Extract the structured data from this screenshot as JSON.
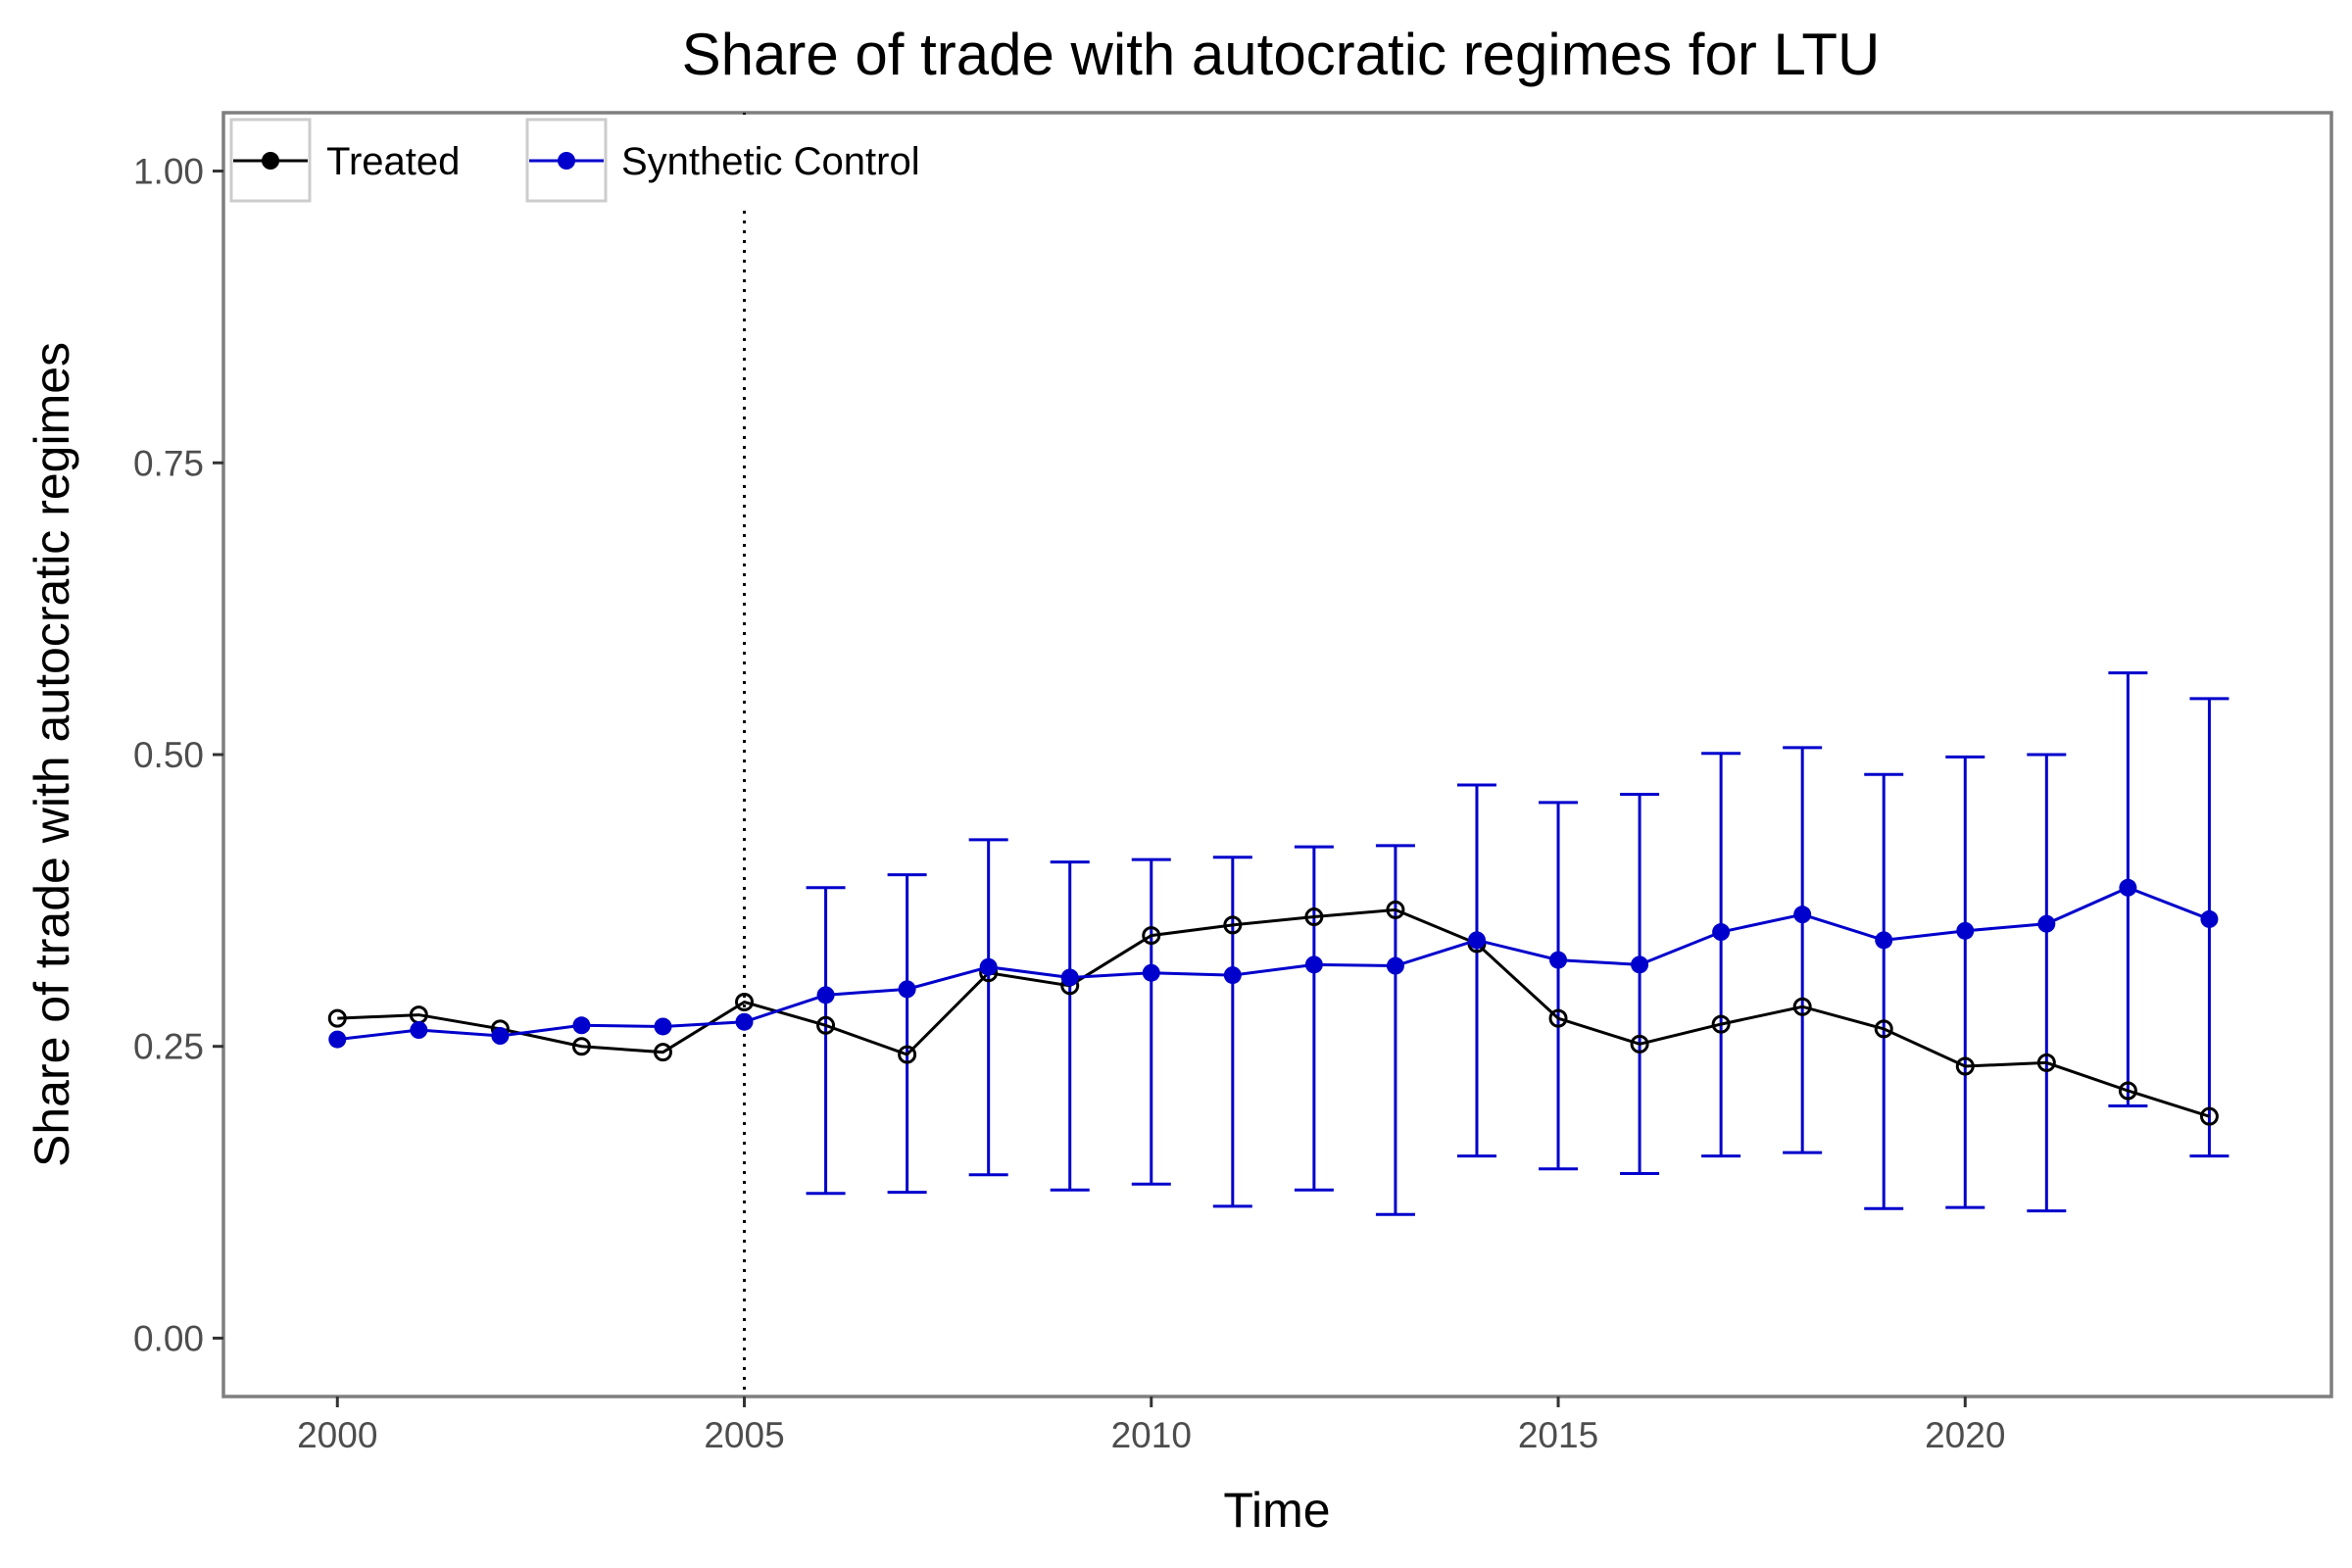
{
  "chart_data": {
    "type": "line",
    "title": "Share of trade with autocratic regimes for LTU",
    "xlabel": "Time",
    "ylabel": "Share of trade with autocratic regimes",
    "xlim": [
      1998.6,
      2024.5
    ],
    "ylim": [
      -0.05,
      1.05
    ],
    "x_ticks": [
      2000,
      2005,
      2010,
      2015,
      2020
    ],
    "x_tick_labels": [
      "2000",
      "2005",
      "2010",
      "2015",
      "2020"
    ],
    "y_ticks": [
      0,
      0.25,
      0.5,
      0.75,
      1.0
    ],
    "y_tick_labels": [
      "0.00",
      "0.25",
      "0.50",
      "0.75",
      "1.00"
    ],
    "treatment_year": 2005,
    "grid": false,
    "legend_position": "top-left",
    "colors": {
      "treated": "#000000",
      "synthetic": "#0000cc",
      "frame": "#7f7f7f"
    },
    "x": [
      2000,
      2001,
      2002,
      2003,
      2004,
      2005,
      2006,
      2007,
      2008,
      2009,
      2010,
      2011,
      2012,
      2013,
      2014,
      2015,
      2016,
      2017,
      2018,
      2019,
      2020,
      2021,
      2022,
      2023
    ],
    "series": [
      {
        "name": "Treated",
        "marker": "open-circle",
        "values": [
          0.274,
          0.277,
          0.265,
          0.25,
          0.245,
          0.288,
          0.268,
          0.243,
          0.313,
          0.302,
          0.345,
          0.354,
          0.361,
          0.367,
          0.338,
          0.274,
          0.252,
          0.269,
          0.284,
          0.265,
          0.233,
          0.236,
          0.212,
          0.19
        ]
      },
      {
        "name": "Synthetic Control",
        "marker": "filled-circle",
        "values": [
          0.256,
          0.264,
          0.259,
          0.268,
          0.267,
          0.271,
          0.294,
          0.299,
          0.318,
          0.309,
          0.313,
          0.311,
          0.32,
          0.319,
          0.341,
          0.324,
          0.32,
          0.348,
          0.363,
          0.341,
          0.349,
          0.355,
          0.386,
          0.359
        ],
        "error_bars": {
          "x": [
            2006,
            2007,
            2008,
            2009,
            2010,
            2011,
            2012,
            2013,
            2014,
            2015,
            2016,
            2017,
            2018,
            2019,
            2020,
            2021,
            2022,
            2023
          ],
          "lower": [
            0.124,
            0.125,
            0.14,
            0.127,
            0.132,
            0.113,
            0.127,
            0.106,
            0.156,
            0.145,
            0.141,
            0.156,
            0.159,
            0.111,
            0.112,
            0.109,
            0.199,
            0.156
          ],
          "upper": [
            0.386,
            0.397,
            0.427,
            0.408,
            0.41,
            0.412,
            0.421,
            0.422,
            0.474,
            0.459,
            0.466,
            0.501,
            0.506,
            0.483,
            0.498,
            0.5,
            0.57,
            0.548
          ]
        }
      }
    ]
  }
}
